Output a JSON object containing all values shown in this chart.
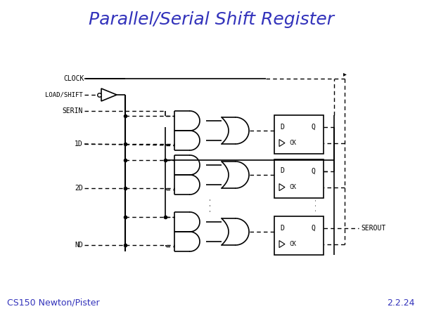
{
  "title": "Parallel/Serial Shift Register",
  "title_color": "#3333bb",
  "title_fontsize": 18,
  "bg_color": "#ffffff",
  "footer_left": "CS150 Newton/Pister",
  "footer_right": "2.2.24",
  "footer_fontsize": 9,
  "line_color": "#000000",
  "fig_w": 6.0,
  "fig_h": 4.5,
  "dpi": 100
}
